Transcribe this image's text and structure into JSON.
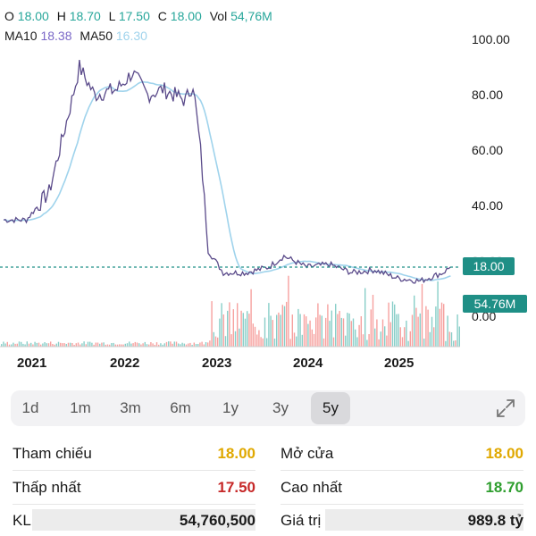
{
  "ohlc": {
    "o_label": "O",
    "o": "18.00",
    "h_label": "H",
    "h": "18.70",
    "l_label": "L",
    "l": "17.50",
    "c_label": "C",
    "c": "18.00",
    "vol_label": "Vol",
    "vol": "54,76M"
  },
  "ma": {
    "ma10_label": "MA10",
    "ma10": "18.38",
    "ma50_label": "MA50",
    "ma50": "16.30"
  },
  "chart_data": {
    "type": "line",
    "x": [
      "2020-09",
      "2020-12",
      "2021-03",
      "2021-06",
      "2021-07",
      "2021-09",
      "2021-12",
      "2022-02",
      "2022-04",
      "2022-06",
      "2022-09",
      "2022-10",
      "2022-11",
      "2022-12",
      "2023-02",
      "2023-05",
      "2023-08",
      "2023-10",
      "2024-01",
      "2024-04",
      "2024-07",
      "2024-10",
      "2025-01",
      "2025-04",
      "2025-07",
      "2025-08"
    ],
    "series": [
      {
        "values": [
          35,
          35,
          45,
          78,
          90,
          80,
          82,
          88,
          80,
          82,
          78,
          84,
          60,
          24,
          16,
          16,
          18,
          22,
          18,
          19,
          16,
          17,
          14,
          13,
          16,
          18
        ]
      }
    ],
    "yticks": [
      "100.00",
      "80.00",
      "60.00",
      "40.00",
      "20.00",
      "0.00"
    ],
    "xticks": [
      "2021",
      "2022",
      "2023",
      "2024",
      "2025"
    ],
    "ylim": [
      0,
      100
    ],
    "last_price": "18.00",
    "last_volume": "54.76M",
    "colors": {
      "price": "#5a4a8a",
      "ma50": "#9fd3ec",
      "up": "#26a69a",
      "down": "#ef5350"
    }
  },
  "timeframes": [
    "1d",
    "1m",
    "3m",
    "6m",
    "1y",
    "3y",
    "5y"
  ],
  "active_timeframe": "5y",
  "stats": {
    "ref_label": "Tham chiếu",
    "ref": "18.00",
    "open_label": "Mở cửa",
    "open": "18.00",
    "low_label": "Thấp nhất",
    "low": "17.50",
    "high_label": "Cao nhất",
    "high": "18.70",
    "kl_label": "KL",
    "kl": "54,760,500",
    "value_label": "Giá trị",
    "value": "989.8 tỷ"
  }
}
